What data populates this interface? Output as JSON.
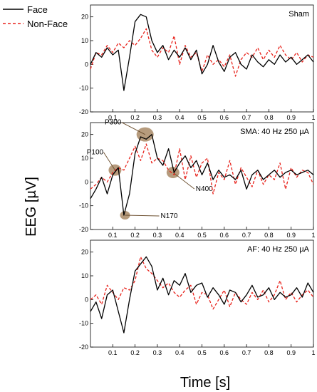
{
  "legend": {
    "entries": [
      {
        "label": "Face",
        "color": "#000000",
        "style": "solid"
      },
      {
        "label": "Non-Face",
        "color": "#e8221b",
        "style": "dashed"
      }
    ]
  },
  "axis_labels": {
    "ylabel": "EEG [µV]",
    "xlabel": "Time [s]"
  },
  "chart_data": [
    {
      "type": "line",
      "title": "Sham",
      "xlim": [
        0,
        1
      ],
      "ylim": [
        -20,
        25
      ],
      "xticks": [
        "0.1",
        "0.2",
        "0.3",
        "0.4",
        "0.5",
        "0.6",
        "0.7",
        "0.8",
        "0.9",
        "1"
      ],
      "yticks": [
        "20",
        "10",
        "0",
        "-10",
        "-20"
      ],
      "x": [
        0,
        0.025,
        0.05,
        0.075,
        0.1,
        0.125,
        0.15,
        0.175,
        0.2,
        0.225,
        0.25,
        0.275,
        0.3,
        0.325,
        0.35,
        0.375,
        0.4,
        0.425,
        0.45,
        0.475,
        0.5,
        0.525,
        0.55,
        0.575,
        0.6,
        0.625,
        0.65,
        0.675,
        0.7,
        0.725,
        0.75,
        0.775,
        0.8,
        0.825,
        0.85,
        0.875,
        0.9,
        0.925,
        0.95,
        0.975,
        1
      ],
      "series": [
        {
          "name": "Face",
          "values": [
            0,
            5,
            3,
            7,
            4,
            6,
            -11,
            3,
            18,
            21,
            20,
            10,
            5,
            8,
            2,
            6,
            3,
            7,
            2,
            6,
            -4,
            0,
            8,
            1,
            -3,
            3,
            5,
            0,
            -2,
            4,
            1,
            -1,
            2,
            0,
            4,
            1,
            3,
            0,
            2,
            4,
            1
          ]
        },
        {
          "name": "Non-Face",
          "values": [
            -2,
            5,
            4,
            8,
            5,
            9,
            7,
            10,
            8,
            11,
            15,
            6,
            3,
            7,
            5,
            12,
            0,
            8,
            3,
            5,
            -3,
            4,
            0,
            2,
            -1,
            4,
            -5,
            2,
            5,
            3,
            7,
            2,
            6,
            3,
            8,
            4,
            2,
            5,
            1,
            4,
            3
          ]
        }
      ]
    },
    {
      "type": "line",
      "title": "SMA: 40 Hz 250 µA",
      "xlim": [
        0,
        1
      ],
      "ylim": [
        -20,
        25
      ],
      "xticks": [
        "0.1",
        "0.2",
        "0.3",
        "0.4",
        "0.5",
        "0.6",
        "0.7",
        "0.8",
        "0.9",
        "1"
      ],
      "yticks": [
        "20",
        "10",
        "0",
        "-10",
        "-20"
      ],
      "annotations": [
        {
          "label": "P100",
          "x": 0.11,
          "y": 5
        },
        {
          "label": "N170",
          "x": 0.155,
          "y": -14
        },
        {
          "label": "P300",
          "x": 0.245,
          "y": 20
        },
        {
          "label": "N400",
          "x": 0.37,
          "y": 4
        }
      ],
      "x": [
        0,
        0.025,
        0.05,
        0.075,
        0.1,
        0.125,
        0.15,
        0.175,
        0.2,
        0.225,
        0.25,
        0.275,
        0.3,
        0.325,
        0.35,
        0.375,
        0.4,
        0.425,
        0.45,
        0.475,
        0.5,
        0.525,
        0.55,
        0.575,
        0.6,
        0.625,
        0.65,
        0.675,
        0.7,
        0.725,
        0.75,
        0.775,
        0.8,
        0.825,
        0.85,
        0.875,
        0.9,
        0.925,
        0.95,
        0.975,
        1
      ],
      "series": [
        {
          "name": "Face",
          "values": [
            -7,
            -3,
            2,
            -5,
            3,
            6,
            -14,
            -5,
            12,
            19,
            18,
            20,
            10,
            7,
            14,
            4,
            8,
            11,
            6,
            9,
            3,
            8,
            1,
            5,
            2,
            3,
            1,
            5,
            -3,
            3,
            5,
            1,
            3,
            5,
            2,
            4,
            5,
            3,
            4,
            5,
            3
          ]
        },
        {
          "name": "Non-Face",
          "values": [
            -3,
            -1,
            2,
            0,
            4,
            6,
            5,
            10,
            15,
            9,
            16,
            8,
            10,
            9,
            5,
            3,
            14,
            1,
            11,
            2,
            8,
            10,
            -5,
            4,
            1,
            9,
            -1,
            6,
            2,
            -2,
            5,
            -1,
            3,
            1,
            8,
            -3,
            6,
            2,
            5,
            4,
            -1
          ]
        }
      ]
    },
    {
      "type": "line",
      "title": "AF: 40 Hz 250 µA",
      "xlim": [
        0,
        1
      ],
      "ylim": [
        -20,
        25
      ],
      "xticks": [
        "0.1",
        "0.2",
        "0.3",
        "0.4",
        "0.5",
        "0.6",
        "0.7",
        "0.8",
        "0.9",
        "1"
      ],
      "yticks": [
        "20",
        "10",
        "0",
        "-10",
        "-20"
      ],
      "x": [
        0,
        0.025,
        0.05,
        0.075,
        0.1,
        0.125,
        0.15,
        0.175,
        0.2,
        0.225,
        0.25,
        0.275,
        0.3,
        0.325,
        0.35,
        0.375,
        0.4,
        0.425,
        0.45,
        0.475,
        0.5,
        0.525,
        0.55,
        0.575,
        0.6,
        0.625,
        0.65,
        0.675,
        0.7,
        0.725,
        0.75,
        0.775,
        0.8,
        0.825,
        0.85,
        0.875,
        0.9,
        0.925,
        0.95,
        0.975,
        1
      ],
      "series": [
        {
          "name": "Face",
          "values": [
            -5,
            -1,
            -8,
            2,
            4,
            -5,
            -14,
            0,
            12,
            15,
            18,
            14,
            4,
            9,
            2,
            8,
            6,
            11,
            3,
            6,
            7,
            1,
            5,
            2,
            -2,
            4,
            3,
            -1,
            2,
            6,
            1,
            2,
            5,
            0,
            3,
            1,
            2,
            5,
            1,
            7,
            3
          ]
        },
        {
          "name": "Non-Face",
          "values": [
            0,
            2,
            -2,
            6,
            3,
            0,
            5,
            4,
            8,
            18,
            13,
            11,
            8,
            5,
            7,
            3,
            1,
            4,
            6,
            -2,
            3,
            2,
            -4,
            0,
            4,
            -3,
            3,
            0,
            -2,
            3,
            0,
            4,
            -1,
            2,
            8,
            0,
            3,
            -1,
            2,
            4,
            1
          ]
        }
      ]
    }
  ]
}
